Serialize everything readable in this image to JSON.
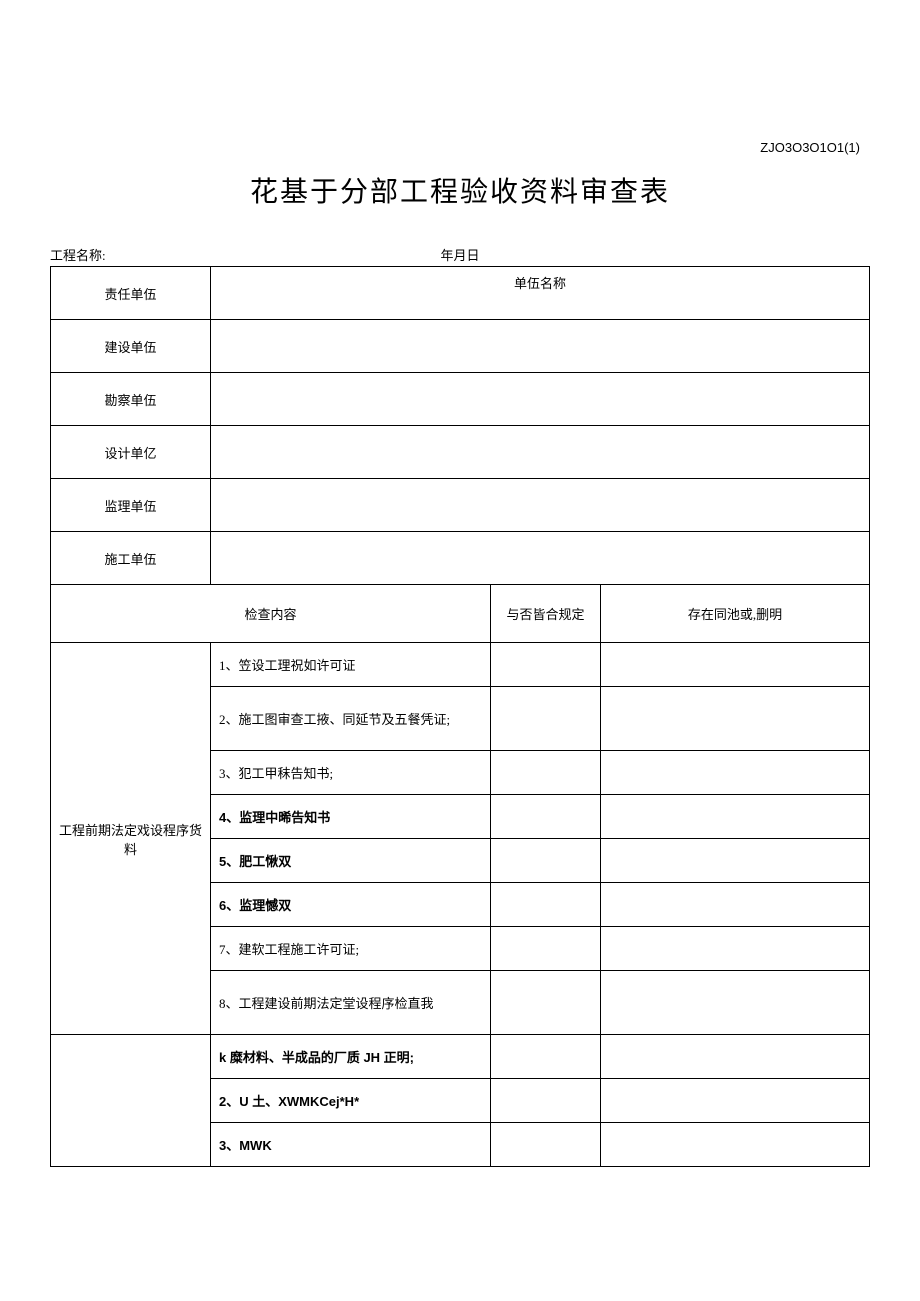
{
  "form_code": "ZJO3O3O1O1(1)",
  "title": "花基于分部工程验收资料审查表",
  "header": {
    "project_label": "工程名称:",
    "date_label": "年月日"
  },
  "unit_rows": [
    {
      "label": "责任单伍",
      "name_header": "单伍名称"
    },
    {
      "label": "建设单伍",
      "name_header": ""
    },
    {
      "label": "勘察单伍",
      "name_header": ""
    },
    {
      "label": "设计单亿",
      "name_header": ""
    },
    {
      "label": "监理单伍",
      "name_header": ""
    },
    {
      "label": "施工单伍",
      "name_header": ""
    }
  ],
  "table_headers": {
    "content": "检查内容",
    "compliant": "与否皆合规定",
    "remark": "存在同池或,删明"
  },
  "section1": {
    "category": "工程前期法定戏设程序货料",
    "items": [
      "1、笠设工理祝如许可证",
      "2、施工图审查工掖、同延节及五餐凭证;",
      "3、犯工甲秣告知书;",
      "4、监理中晞告知书",
      "5、肥工愀双",
      "6、监理憾双",
      "7、建软工程施工许可证;",
      "8、工程建设前期法定堂设程序检直我"
    ]
  },
  "section2": {
    "items": [
      "k 糜材料、半成品的厂质 JH 正明;",
      "2、U 土、XWMKCej*H*",
      "3、MWK"
    ]
  }
}
